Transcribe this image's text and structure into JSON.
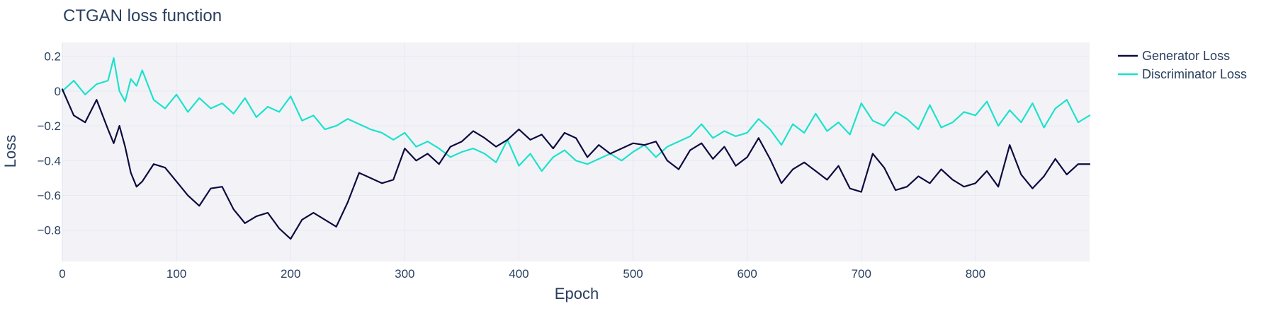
{
  "chart_data": {
    "type": "line",
    "title": "CTGAN loss function",
    "xlabel": "Epoch",
    "ylabel": "Loss",
    "xlim": [
      0,
      900
    ],
    "ylim": [
      -0.98,
      0.28
    ],
    "grid": true,
    "legend_position": "top-right",
    "x_ticks": [
      0,
      100,
      200,
      300,
      400,
      500,
      600,
      700,
      800
    ],
    "x_tick_labels": [
      "0",
      "100",
      "200",
      "300",
      "400",
      "500",
      "600",
      "700",
      "800"
    ],
    "y_ticks": [
      0.2,
      0,
      -0.2,
      -0.4,
      -0.6,
      -0.8
    ],
    "y_tick_labels": [
      "0.2",
      "0",
      "−0.2",
      "−0.4",
      "−0.6",
      "−0.8"
    ],
    "colors": {
      "plot_bg": "#f3f3f7",
      "grid": "#e6e8f4",
      "text": "#2a3f5f",
      "generator": "#0d0a3f",
      "discriminator": "#1de2cc"
    },
    "series": [
      {
        "name": "Generator Loss",
        "key": "generator",
        "x": [
          0,
          10,
          20,
          30,
          40,
          45,
          50,
          55,
          60,
          65,
          70,
          80,
          90,
          100,
          110,
          120,
          130,
          140,
          150,
          160,
          170,
          180,
          190,
          200,
          210,
          220,
          230,
          240,
          250,
          260,
          270,
          280,
          290,
          300,
          310,
          320,
          330,
          340,
          350,
          360,
          370,
          380,
          390,
          400,
          410,
          420,
          430,
          440,
          450,
          460,
          470,
          480,
          490,
          500,
          510,
          520,
          530,
          540,
          550,
          560,
          570,
          580,
          590,
          600,
          610,
          620,
          630,
          640,
          650,
          660,
          670,
          680,
          690,
          700,
          710,
          720,
          730,
          740,
          750,
          760,
          770,
          780,
          790,
          800,
          810,
          820,
          830,
          840,
          850,
          860,
          870,
          880,
          890,
          900
        ],
        "values": [
          0.01,
          -0.14,
          -0.18,
          -0.05,
          -0.22,
          -0.3,
          -0.2,
          -0.32,
          -0.47,
          -0.55,
          -0.52,
          -0.42,
          -0.44,
          -0.52,
          -0.6,
          -0.66,
          -0.56,
          -0.55,
          -0.68,
          -0.76,
          -0.72,
          -0.7,
          -0.79,
          -0.85,
          -0.74,
          -0.7,
          -0.74,
          -0.78,
          -0.64,
          -0.47,
          -0.5,
          -0.53,
          -0.51,
          -0.33,
          -0.4,
          -0.36,
          -0.42,
          -0.32,
          -0.29,
          -0.23,
          -0.27,
          -0.32,
          -0.28,
          -0.22,
          -0.28,
          -0.25,
          -0.33,
          -0.24,
          -0.27,
          -0.38,
          -0.31,
          -0.36,
          -0.33,
          -0.3,
          -0.31,
          -0.29,
          -0.4,
          -0.45,
          -0.34,
          -0.3,
          -0.39,
          -0.32,
          -0.43,
          -0.38,
          -0.27,
          -0.39,
          -0.53,
          -0.45,
          -0.41,
          -0.46,
          -0.51,
          -0.43,
          -0.56,
          -0.58,
          -0.36,
          -0.44,
          -0.57,
          -0.55,
          -0.49,
          -0.53,
          -0.45,
          -0.51,
          -0.55,
          -0.53,
          -0.46,
          -0.55,
          -0.31,
          -0.48,
          -0.56,
          -0.49,
          -0.39,
          -0.48,
          -0.42,
          -0.42
        ]
      },
      {
        "name": "Discriminator Loss",
        "key": "discriminator",
        "x": [
          0,
          10,
          20,
          30,
          40,
          45,
          50,
          55,
          60,
          65,
          70,
          80,
          90,
          100,
          110,
          120,
          130,
          140,
          150,
          160,
          170,
          180,
          190,
          200,
          210,
          220,
          230,
          240,
          250,
          260,
          270,
          280,
          290,
          300,
          310,
          320,
          330,
          340,
          350,
          360,
          370,
          380,
          390,
          400,
          410,
          420,
          430,
          440,
          450,
          460,
          470,
          480,
          490,
          500,
          510,
          520,
          530,
          540,
          550,
          560,
          570,
          580,
          590,
          600,
          610,
          620,
          630,
          640,
          650,
          660,
          670,
          680,
          690,
          700,
          710,
          720,
          730,
          740,
          750,
          760,
          770,
          780,
          790,
          800,
          810,
          820,
          830,
          840,
          850,
          860,
          870,
          880,
          890,
          900
        ],
        "values": [
          0.0,
          0.06,
          -0.02,
          0.04,
          0.06,
          0.19,
          0.0,
          -0.06,
          0.07,
          0.03,
          0.12,
          -0.05,
          -0.1,
          -0.02,
          -0.12,
          -0.04,
          -0.1,
          -0.07,
          -0.13,
          -0.04,
          -0.15,
          -0.09,
          -0.12,
          -0.03,
          -0.17,
          -0.14,
          -0.22,
          -0.2,
          -0.16,
          -0.19,
          -0.22,
          -0.24,
          -0.28,
          -0.24,
          -0.32,
          -0.29,
          -0.33,
          -0.38,
          -0.35,
          -0.33,
          -0.36,
          -0.41,
          -0.28,
          -0.43,
          -0.36,
          -0.46,
          -0.38,
          -0.34,
          -0.4,
          -0.42,
          -0.39,
          -0.36,
          -0.4,
          -0.35,
          -0.31,
          -0.38,
          -0.32,
          -0.29,
          -0.26,
          -0.19,
          -0.27,
          -0.23,
          -0.26,
          -0.24,
          -0.16,
          -0.22,
          -0.31,
          -0.19,
          -0.24,
          -0.13,
          -0.23,
          -0.18,
          -0.25,
          -0.07,
          -0.17,
          -0.2,
          -0.12,
          -0.16,
          -0.22,
          -0.08,
          -0.21,
          -0.18,
          -0.12,
          -0.14,
          -0.06,
          -0.2,
          -0.11,
          -0.18,
          -0.07,
          -0.21,
          -0.1,
          -0.05,
          -0.18,
          -0.14
        ]
      }
    ]
  }
}
